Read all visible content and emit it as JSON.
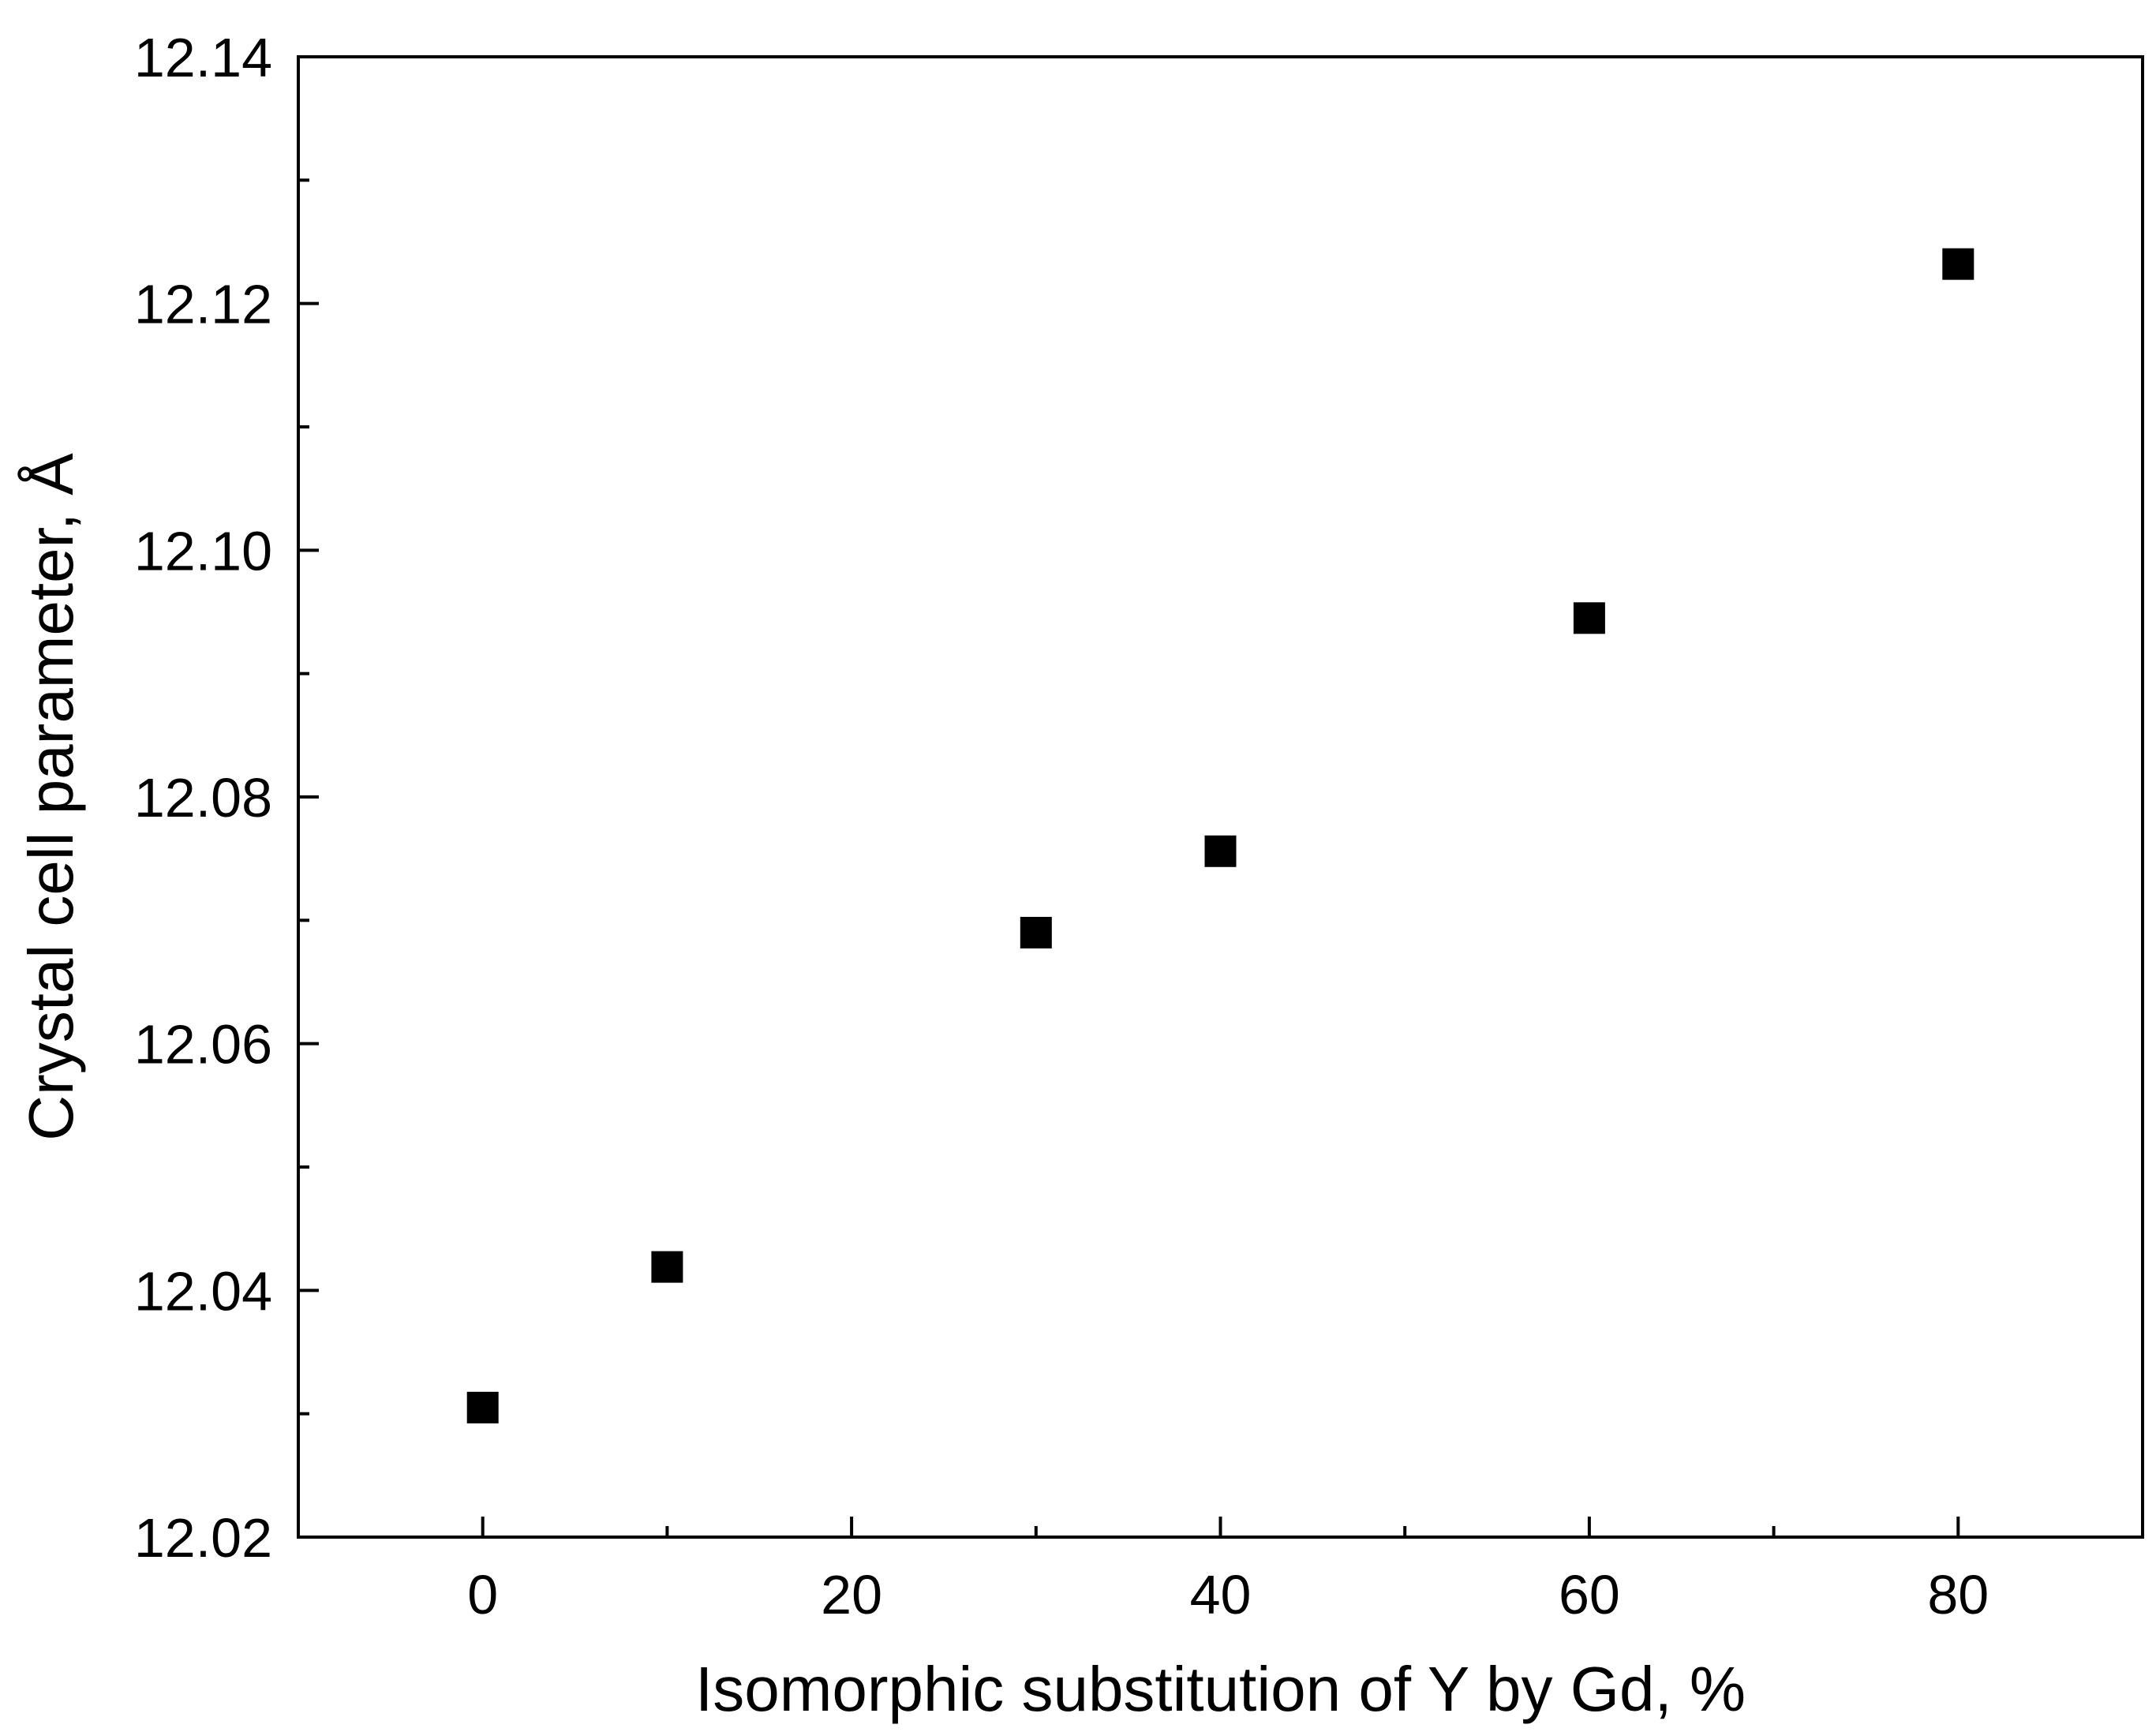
{
  "chart_data": {
    "type": "scatter",
    "title": "",
    "xlabel": "Isomorphic substitution of Y by Gd, %",
    "ylabel": "Crystal cell parameter, Å",
    "xlim": [
      -10,
      90
    ],
    "ylim": [
      12.02,
      12.14
    ],
    "x_major_ticks": [
      0,
      20,
      40,
      60,
      80
    ],
    "x_minor_ticks": [
      -10,
      10,
      30,
      50,
      70,
      90
    ],
    "y_major_ticks": [
      12.02,
      12.04,
      12.06,
      12.08,
      12.1,
      12.12,
      12.14
    ],
    "y_minor_ticks": [
      12.03,
      12.05,
      12.07,
      12.09,
      12.11,
      12.13
    ],
    "x_tick_labels": [
      "0",
      "20",
      "40",
      "60",
      "80"
    ],
    "y_tick_labels": [
      "12.02",
      "12.04",
      "12.06",
      "12.08",
      "12.10",
      "12.12",
      "12.14"
    ],
    "grid": false,
    "marker": "square",
    "marker_color": "#000000",
    "series": [
      {
        "name": "cell parameter",
        "x": [
          0,
          10,
          30,
          40,
          60,
          80
        ],
        "y": [
          12.0305,
          12.0419,
          12.069,
          12.0756,
          12.0945,
          12.1232
        ]
      }
    ]
  }
}
